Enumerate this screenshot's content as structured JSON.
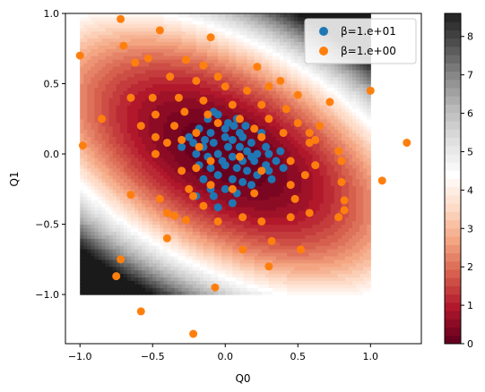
{
  "chart_data": {
    "type": "scatter",
    "xlabel": "Q0",
    "ylabel": "Q1",
    "xlim": [
      -1.1,
      1.35
    ],
    "ylim": [
      -1.35,
      1.0
    ],
    "x_ticks": [
      -1.0,
      -0.5,
      0.0,
      0.5,
      1.0
    ],
    "x_tick_labels": [
      "−1.0",
      "−0.5",
      "0.0",
      "0.5",
      "1.0"
    ],
    "y_ticks": [
      -1.0,
      -0.5,
      0.0,
      0.5,
      1.0
    ],
    "y_tick_labels": [
      "−1.0",
      "−0.5",
      "0.0",
      "0.5",
      "1.0"
    ],
    "grid": false,
    "legend_position": "top-right",
    "background_contour": {
      "type": "filled-contour",
      "function": "Q0^2 + 1.4*Q0*Q1 + 1.8*Q1^2 (scaled)",
      "domain_x": [
        -1.0,
        1.0
      ],
      "domain_y": [
        -1.0,
        1.0
      ],
      "vmin": 0,
      "vmax": 8.6,
      "colormap": "RdGy"
    },
    "colorbar": {
      "ticks": [
        0,
        1,
        2,
        3,
        4,
        5,
        6,
        7,
        8
      ],
      "tick_labels": [
        "0",
        "1",
        "2",
        "3",
        "4",
        "5",
        "6",
        "7",
        "8"
      ],
      "range": [
        0,
        8.6
      ]
    },
    "series": [
      {
        "name": "β=1.e+01",
        "color": "#1f77b4",
        "points": [
          [
            -0.12,
            0.25
          ],
          [
            -0.05,
            0.28
          ],
          [
            0.02,
            0.22
          ],
          [
            0.08,
            0.25
          ],
          [
            -0.18,
            0.18
          ],
          [
            -0.1,
            0.15
          ],
          [
            0.0,
            0.18
          ],
          [
            0.05,
            0.1
          ],
          [
            0.12,
            0.12
          ],
          [
            0.18,
            0.08
          ],
          [
            -0.22,
            0.08
          ],
          [
            -0.15,
            0.05
          ],
          [
            -0.08,
            0.08
          ],
          [
            0.02,
            0.05
          ],
          [
            0.1,
            0.05
          ],
          [
            0.15,
            0.02
          ],
          [
            0.22,
            0.0
          ],
          [
            0.3,
            0.0
          ],
          [
            0.38,
            0.02
          ],
          [
            -0.2,
            0.0
          ],
          [
            -0.12,
            -0.02
          ],
          [
            -0.05,
            0.0
          ],
          [
            0.05,
            -0.02
          ],
          [
            0.12,
            -0.05
          ],
          [
            0.2,
            -0.05
          ],
          [
            0.28,
            -0.08
          ],
          [
            0.35,
            -0.05
          ],
          [
            -0.18,
            -0.08
          ],
          [
            -0.1,
            -0.1
          ],
          [
            0.0,
            -0.08
          ],
          [
            0.08,
            -0.1
          ],
          [
            0.15,
            -0.12
          ],
          [
            0.22,
            -0.15
          ],
          [
            0.3,
            -0.12
          ],
          [
            -0.15,
            -0.18
          ],
          [
            -0.05,
            -0.15
          ],
          [
            0.05,
            -0.18
          ],
          [
            0.12,
            -0.2
          ],
          [
            0.18,
            -0.22
          ],
          [
            -0.1,
            -0.25
          ],
          [
            0.0,
            -0.25
          ],
          [
            0.08,
            -0.28
          ],
          [
            -0.2,
            -0.3
          ],
          [
            0.05,
            -0.35
          ],
          [
            -0.05,
            -0.38
          ],
          [
            -0.08,
            0.3
          ],
          [
            0.0,
            0.12
          ],
          [
            -0.25,
            0.12
          ],
          [
            0.25,
            0.15
          ],
          [
            0.32,
            -0.18
          ],
          [
            -0.02,
            -0.05
          ],
          [
            0.1,
            0.15
          ],
          [
            -0.14,
            0.1
          ],
          [
            0.18,
            -0.02
          ],
          [
            0.06,
            0.2
          ],
          [
            -0.3,
            0.05
          ],
          [
            0.28,
            0.05
          ],
          [
            0.4,
            -0.1
          ],
          [
            -0.08,
            -0.3
          ],
          [
            0.14,
            0.2
          ]
        ]
      },
      {
        "name": "β=1.e+00",
        "color": "#ff7f0e",
        "points": [
          [
            -0.72,
            0.96
          ],
          [
            -0.45,
            0.88
          ],
          [
            -0.1,
            0.83
          ],
          [
            -1.0,
            0.7
          ],
          [
            -0.7,
            0.77
          ],
          [
            -0.62,
            0.65
          ],
          [
            -0.53,
            0.68
          ],
          [
            -0.27,
            0.67
          ],
          [
            -0.15,
            0.63
          ],
          [
            -0.05,
            0.55
          ],
          [
            0.22,
            0.62
          ],
          [
            0.38,
            0.52
          ],
          [
            -0.38,
            0.55
          ],
          [
            -0.2,
            0.52
          ],
          [
            0.0,
            0.48
          ],
          [
            0.15,
            0.45
          ],
          [
            0.3,
            0.48
          ],
          [
            0.5,
            0.42
          ],
          [
            0.72,
            0.37
          ],
          [
            1.0,
            0.45
          ],
          [
            -0.65,
            0.4
          ],
          [
            -0.5,
            0.4
          ],
          [
            -0.32,
            0.4
          ],
          [
            -0.15,
            0.38
          ],
          [
            0.05,
            0.35
          ],
          [
            0.25,
            0.35
          ],
          [
            0.42,
            0.32
          ],
          [
            -0.85,
            0.25
          ],
          [
            -0.48,
            0.28
          ],
          [
            -0.28,
            0.3
          ],
          [
            -0.12,
            0.28
          ],
          [
            0.1,
            0.25
          ],
          [
            0.3,
            0.25
          ],
          [
            0.5,
            0.22
          ],
          [
            0.65,
            0.2
          ],
          [
            -0.58,
            0.2
          ],
          [
            -0.35,
            0.2
          ],
          [
            -0.2,
            0.15
          ],
          [
            0.2,
            0.18
          ],
          [
            0.4,
            0.15
          ],
          [
            0.58,
            0.15
          ],
          [
            0.62,
            0.1
          ],
          [
            -0.48,
            0.12
          ],
          [
            -0.4,
            0.08
          ],
          [
            -0.3,
            0.1
          ],
          [
            -0.18,
            0.05
          ],
          [
            0.58,
            0.08
          ],
          [
            0.78,
            0.02
          ],
          [
            1.25,
            0.08
          ],
          [
            -0.98,
            0.06
          ],
          [
            -0.48,
            0.0
          ],
          [
            -0.1,
            -0.05
          ],
          [
            0.1,
            -0.02
          ],
          [
            0.45,
            -0.05
          ],
          [
            0.62,
            -0.08
          ],
          [
            0.8,
            -0.05
          ],
          [
            -0.3,
            -0.12
          ],
          [
            -0.2,
            -0.1
          ],
          [
            0.25,
            -0.12
          ],
          [
            0.55,
            -0.15
          ],
          [
            0.8,
            -0.2
          ],
          [
            1.08,
            -0.19
          ],
          [
            -0.25,
            -0.25
          ],
          [
            -0.1,
            -0.22
          ],
          [
            0.05,
            -0.25
          ],
          [
            0.2,
            -0.28
          ],
          [
            0.45,
            -0.22
          ],
          [
            -0.45,
            -0.32
          ],
          [
            -0.22,
            -0.3
          ],
          [
            0.48,
            -0.32
          ],
          [
            0.82,
            -0.33
          ],
          [
            -0.65,
            -0.29
          ],
          [
            -0.4,
            -0.42
          ],
          [
            -0.35,
            -0.44
          ],
          [
            -0.15,
            -0.37
          ],
          [
            -0.27,
            -0.47
          ],
          [
            -0.05,
            -0.48
          ],
          [
            0.12,
            -0.45
          ],
          [
            0.25,
            -0.48
          ],
          [
            0.45,
            -0.45
          ],
          [
            0.58,
            -0.42
          ],
          [
            0.78,
            -0.45
          ],
          [
            0.82,
            -0.4
          ],
          [
            -0.4,
            -0.6
          ],
          [
            0.12,
            -0.68
          ],
          [
            0.32,
            -0.62
          ],
          [
            0.52,
            -0.68
          ],
          [
            -0.72,
            -0.75
          ],
          [
            -0.75,
            -0.87
          ],
          [
            0.3,
            -0.8
          ],
          [
            -0.07,
            -0.95
          ],
          [
            -0.58,
            -1.12
          ],
          [
            -0.22,
            -1.28
          ],
          [
            0.25,
            0.12
          ],
          [
            -0.05,
            0.22
          ]
        ]
      }
    ]
  }
}
